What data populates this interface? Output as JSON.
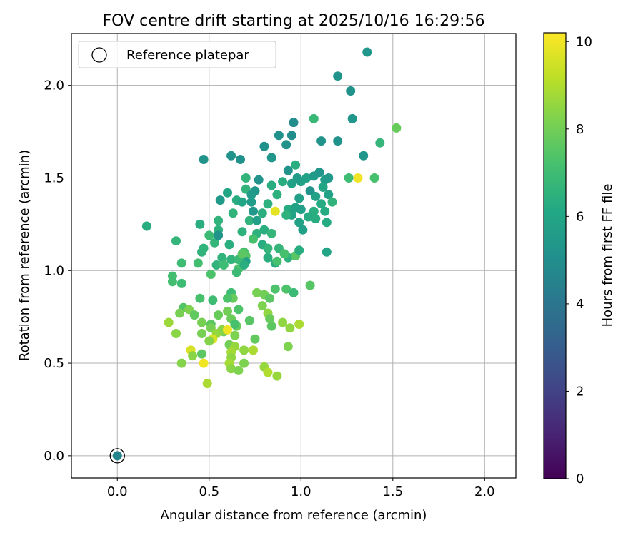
{
  "chart_data": {
    "type": "scatter",
    "title": "FOV centre drift starting at 2025/10/16 16:29:56",
    "xlabel": "Angular distance from reference (arcmin)",
    "ylabel": "Rotation from reference (arcmin)",
    "xlim": [
      -0.25,
      2.17
    ],
    "ylim": [
      -0.12,
      2.28
    ],
    "xticks": [
      "0.0",
      "0.5",
      "1.0",
      "1.5",
      "2.0"
    ],
    "yticks": [
      "0.0",
      "0.5",
      "1.0",
      "1.5",
      "2.0"
    ],
    "grid": true,
    "legend_placement": "top-left",
    "legend": [
      {
        "label": "Reference platepar",
        "marker": "open-circle"
      }
    ],
    "colorbar": {
      "label": "Hours from first FF file",
      "range": [
        0,
        10.2
      ],
      "ticks": [
        "0",
        "2",
        "4",
        "6",
        "8",
        "10"
      ],
      "colormap": "viridis"
    },
    "reference_point": {
      "x": 0.0,
      "y": 0.0,
      "hours": 4.6
    },
    "points": [
      [
        1.36,
        2.18,
        5.3
      ],
      [
        1.2,
        2.05,
        5.2
      ],
      [
        1.27,
        1.97,
        5.1
      ],
      [
        1.52,
        1.77,
        7.8
      ],
      [
        1.28,
        1.82,
        5.3
      ],
      [
        1.07,
        1.82,
        6.8
      ],
      [
        1.43,
        1.69,
        6.7
      ],
      [
        0.96,
        1.8,
        4.9
      ],
      [
        0.88,
        1.73,
        5.1
      ],
      [
        0.95,
        1.73,
        5.0
      ],
      [
        1.11,
        1.7,
        5.2
      ],
      [
        1.2,
        1.7,
        5.2
      ],
      [
        0.92,
        1.68,
        5.2
      ],
      [
        0.8,
        1.67,
        5.1
      ],
      [
        0.62,
        1.62,
        5.2
      ],
      [
        0.84,
        1.61,
        5.3
      ],
      [
        0.67,
        1.6,
        5.1
      ],
      [
        0.47,
        1.6,
        5.2
      ],
      [
        1.34,
        1.62,
        5.3
      ],
      [
        0.97,
        1.57,
        6.4
      ],
      [
        0.93,
        1.54,
        5.2
      ],
      [
        1.03,
        1.5,
        5.8
      ],
      [
        1.07,
        1.51,
        5.5
      ],
      [
        1.13,
        1.49,
        5.6
      ],
      [
        1.1,
        1.53,
        5.3
      ],
      [
        1.15,
        1.5,
        5.5
      ],
      [
        1.0,
        1.48,
        5.8
      ],
      [
        0.98,
        1.5,
        5.6
      ],
      [
        0.95,
        1.47,
        5.8
      ],
      [
        0.9,
        1.48,
        6.3
      ],
      [
        1.26,
        1.5,
        7.0
      ],
      [
        1.31,
        1.5,
        10.0
      ],
      [
        1.4,
        1.5,
        7.2
      ],
      [
        0.7,
        1.5,
        6.6
      ],
      [
        0.77,
        1.49,
        5.2
      ],
      [
        0.84,
        1.46,
        6.3
      ],
      [
        0.75,
        1.43,
        5.3
      ],
      [
        0.7,
        1.44,
        6.6
      ],
      [
        0.6,
        1.42,
        6.0
      ],
      [
        1.05,
        1.43,
        5.2
      ],
      [
        1.12,
        1.45,
        6.0
      ],
      [
        1.08,
        1.4,
        5.8
      ],
      [
        1.15,
        1.41,
        5.8
      ],
      [
        0.99,
        1.39,
        5.7
      ],
      [
        0.87,
        1.41,
        6.5
      ],
      [
        0.73,
        1.41,
        5.5
      ],
      [
        0.56,
        1.38,
        5.5
      ],
      [
        0.65,
        1.38,
        6.3
      ],
      [
        0.68,
        1.37,
        6.0
      ],
      [
        0.73,
        1.37,
        5.6
      ],
      [
        0.82,
        1.36,
        6.5
      ],
      [
        1.17,
        1.37,
        6.6
      ],
      [
        1.11,
        1.36,
        6.2
      ],
      [
        0.93,
        1.33,
        6.2
      ],
      [
        0.97,
        1.34,
        5.9
      ],
      [
        1.0,
        1.33,
        5.7
      ],
      [
        0.86,
        1.32,
        9.8
      ],
      [
        0.79,
        1.31,
        6.4
      ],
      [
        0.74,
        1.32,
        5.4
      ],
      [
        0.63,
        1.31,
        6.6
      ],
      [
        1.07,
        1.32,
        6.4
      ],
      [
        1.13,
        1.32,
        6.2
      ],
      [
        0.95,
        1.3,
        5.9
      ],
      [
        0.92,
        1.3,
        6.5
      ],
      [
        0.99,
        1.26,
        5.8
      ],
      [
        1.04,
        1.29,
        6.2
      ],
      [
        1.08,
        1.28,
        6.3
      ],
      [
        0.72,
        1.27,
        6.6
      ],
      [
        0.76,
        1.27,
        5.7
      ],
      [
        0.55,
        1.27,
        6.6
      ],
      [
        1.14,
        1.26,
        6.2
      ],
      [
        0.16,
        1.24,
        6.3
      ],
      [
        0.45,
        1.25,
        6.4
      ],
      [
        1.01,
        1.22,
        5.7
      ],
      [
        0.8,
        1.22,
        6.4
      ],
      [
        0.84,
        1.2,
        6.7
      ],
      [
        0.76,
        1.2,
        6.5
      ],
      [
        0.74,
        1.17,
        7.2
      ],
      [
        0.68,
        1.21,
        6.5
      ],
      [
        0.55,
        1.22,
        6.5
      ],
      [
        0.5,
        1.19,
        6.9
      ],
      [
        0.32,
        1.16,
        6.7
      ],
      [
        0.79,
        1.14,
        6.3
      ],
      [
        0.82,
        1.12,
        6.7
      ],
      [
        0.88,
        1.12,
        6.7
      ],
      [
        0.61,
        1.14,
        6.4
      ],
      [
        0.53,
        1.15,
        6.7
      ],
      [
        0.55,
        1.19,
        5.2
      ],
      [
        0.69,
        1.1,
        7.2
      ],
      [
        0.7,
        1.08,
        7.5
      ],
      [
        0.7,
        1.05,
        5.8
      ],
      [
        0.82,
        1.07,
        6.4
      ],
      [
        0.93,
        1.07,
        6.5
      ],
      [
        0.91,
        1.09,
        7.2
      ],
      [
        0.97,
        1.08,
        7.5
      ],
      [
        0.99,
        1.11,
        6.3
      ],
      [
        1.14,
        1.1,
        6.0
      ],
      [
        0.46,
        1.1,
        6.6
      ],
      [
        0.47,
        1.12,
        6.6
      ],
      [
        0.57,
        1.07,
        6.6
      ],
      [
        0.62,
        1.06,
        6.6
      ],
      [
        0.44,
        1.04,
        7.1
      ],
      [
        0.35,
        1.04,
        7.0
      ],
      [
        0.66,
        1.06,
        6.9
      ],
      [
        0.54,
        1.03,
        6.6
      ],
      [
        0.58,
        1.03,
        7.0
      ],
      [
        0.66,
        1.01,
        7.3
      ],
      [
        0.86,
        1.04,
        6.3
      ],
      [
        0.87,
        1.05,
        7.2
      ],
      [
        0.69,
        1.03,
        6.4
      ],
      [
        0.65,
        0.99,
        6.9
      ],
      [
        0.51,
        0.98,
        7.3
      ],
      [
        0.3,
        0.97,
        7.1
      ],
      [
        0.3,
        0.94,
        7.1
      ],
      [
        0.35,
        0.93,
        7.0
      ],
      [
        1.05,
        0.92,
        7.5
      ],
      [
        0.86,
        0.9,
        7.3
      ],
      [
        0.92,
        0.9,
        7.3
      ],
      [
        0.96,
        0.88,
        6.9
      ],
      [
        0.76,
        0.88,
        8.1
      ],
      [
        0.8,
        0.87,
        8.0
      ],
      [
        0.62,
        0.88,
        7.0
      ],
      [
        0.52,
        0.84,
        7.0
      ],
      [
        0.45,
        0.85,
        7.2
      ],
      [
        0.63,
        0.85,
        7.8
      ],
      [
        0.6,
        0.85,
        7.3
      ],
      [
        0.83,
        0.85,
        7.6
      ],
      [
        0.79,
        0.81,
        8.2
      ],
      [
        0.36,
        0.8,
        7.4
      ],
      [
        0.39,
        0.79,
        8.2
      ],
      [
        0.34,
        0.77,
        8.1
      ],
      [
        0.42,
        0.76,
        7.7
      ],
      [
        0.6,
        0.78,
        8.0
      ],
      [
        0.66,
        0.79,
        7.3
      ],
      [
        0.55,
        0.76,
        7.8
      ],
      [
        0.82,
        0.77,
        8.5
      ],
      [
        0.83,
        0.74,
        7.8
      ],
      [
        0.72,
        0.73,
        7.5
      ],
      [
        0.62,
        0.74,
        7.9
      ],
      [
        0.65,
        0.7,
        7.8
      ],
      [
        0.64,
        0.71,
        7.2
      ],
      [
        0.46,
        0.72,
        8.1
      ],
      [
        0.51,
        0.71,
        7.6
      ],
      [
        0.28,
        0.72,
        8.7
      ],
      [
        0.84,
        0.7,
        7.6
      ],
      [
        0.99,
        0.71,
        8.9
      ],
      [
        0.94,
        0.69,
        8.5
      ],
      [
        0.9,
        0.72,
        8.5
      ],
      [
        0.51,
        0.69,
        8.1
      ],
      [
        0.46,
        0.66,
        8.1
      ],
      [
        0.58,
        0.67,
        8.0
      ],
      [
        0.54,
        0.66,
        8.6
      ],
      [
        0.57,
        0.68,
        8.4
      ],
      [
        0.6,
        0.68,
        10.0
      ],
      [
        0.64,
        0.65,
        8.2
      ],
      [
        0.32,
        0.66,
        8.4
      ],
      [
        0.52,
        0.63,
        9.6
      ],
      [
        0.5,
        0.62,
        8.3
      ],
      [
        0.75,
        0.63,
        7.7
      ],
      [
        0.61,
        0.6,
        8.0
      ],
      [
        0.93,
        0.59,
        8.2
      ],
      [
        0.4,
        0.57,
        9.6
      ],
      [
        0.64,
        0.59,
        8.6
      ],
      [
        0.62,
        0.56,
        8.8
      ],
      [
        0.74,
        0.57,
        8.9
      ],
      [
        0.69,
        0.57,
        8.5
      ],
      [
        0.41,
        0.54,
        8.4
      ],
      [
        0.46,
        0.55,
        7.6
      ],
      [
        0.62,
        0.53,
        8.5
      ],
      [
        0.35,
        0.5,
        8.3
      ],
      [
        0.47,
        0.5,
        10.0
      ],
      [
        0.61,
        0.5,
        8.8
      ],
      [
        0.69,
        0.5,
        8.2
      ],
      [
        0.8,
        0.48,
        8.6
      ],
      [
        0.62,
        0.47,
        8.4
      ],
      [
        0.66,
        0.46,
        8.2
      ],
      [
        0.82,
        0.45,
        9.0
      ],
      [
        0.87,
        0.43,
        8.6
      ],
      [
        0.49,
        0.39,
        8.9
      ],
      [
        0.68,
        1.09,
        7.6
      ]
    ]
  }
}
